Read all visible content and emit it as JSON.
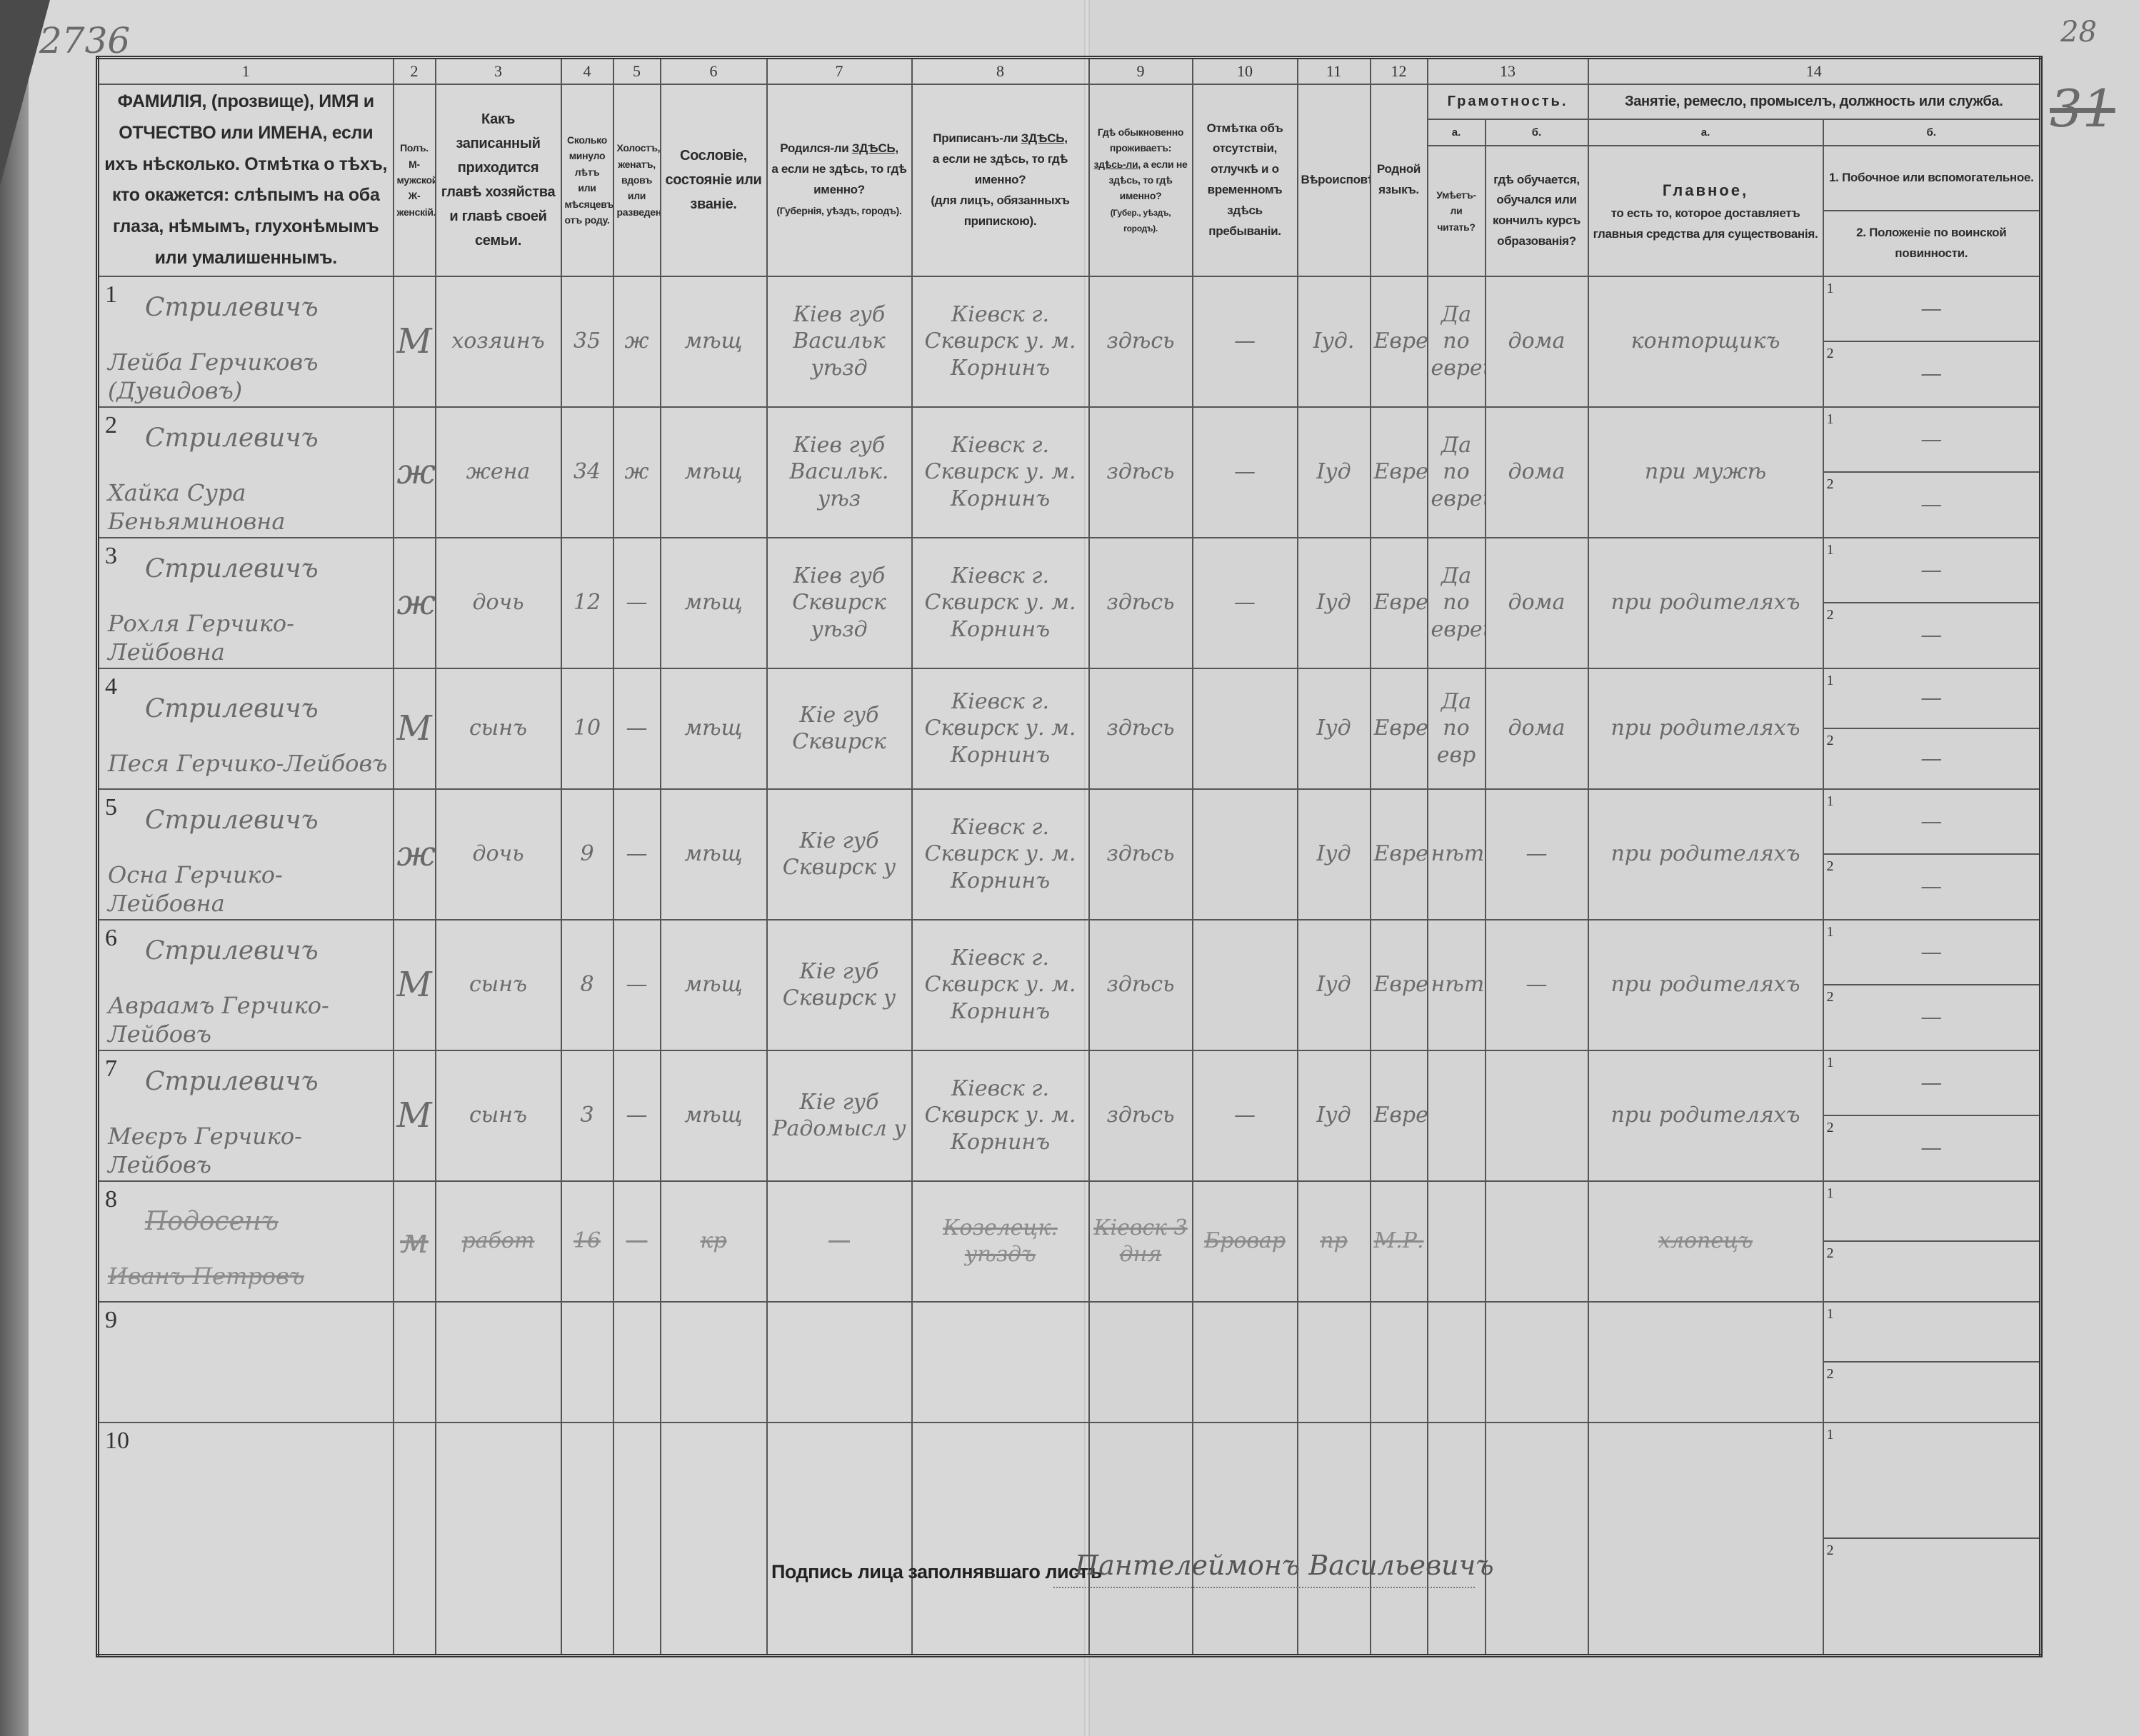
{
  "margin_notes": {
    "archive_number": "2736",
    "page_number": "28",
    "old_page_number": "31"
  },
  "header": {
    "column_numbers": [
      "1",
      "2",
      "3",
      "4",
      "5",
      "6",
      "7",
      "8",
      "9",
      "10",
      "11",
      "12",
      "13",
      "14"
    ],
    "col1": "ФАМИЛІЯ, (прозвище), ИМЯ и ОТЧЕСТВО или ИМЕНА, если ихъ нѣсколько. Отмѣтка о тѣхъ, кто окажется: слѣпымъ на оба глаза, нѣмымъ, глухонѣмымъ или умалишеннымъ.",
    "col2": "Полъ. М-мужской. Ж-женскій.",
    "col3": "Какъ записанный приходится главѣ хозяйства и главѣ своей семьи.",
    "col4": "Сколько минуло лѣтъ или мѣсяцевъ отъ роду.",
    "col5": "Холостъ, женатъ, вдовъ или разведенъ.",
    "col6": "Сословіе, состояніе или званіе.",
    "col7_a": "Родился-ли",
    "col7_here": "ЗДѢСЬ,",
    "col7_b": "а если не здѣсь, то гдѣ именно?",
    "col7_c": "(Губернія, уѣздъ, городъ).",
    "col8_a": "Приписанъ-ли",
    "col8_here": "ЗДѢСЬ,",
    "col8_b": "а если не здѣсь, то гдѣ именно?",
    "col8_c": "(для лицъ, обязанныхъ припискою).",
    "col9_a": "Гдѣ обыкновенно проживаетъ:",
    "col9_here": "здѣсь-ли,",
    "col9_b": "а если не здѣсь, то гдѣ именно?",
    "col9_c": "(Губер., уѣздъ, городъ).",
    "col10": "Отмѣтка объ отсутствіи, отлучкѣ и о временномъ здѣсь пребываніи.",
    "col11": "Вѣроисповѣданіе.",
    "col12": "Родной языкъ.",
    "col13_title": "Грамотность.",
    "col13_a_letter": "а.",
    "col13_b_letter": "б.",
    "col13_a": "Умѣетъ-ли читать?",
    "col13_b": "гдѣ обучается, обучался или кончилъ курсъ образованія?",
    "col14_title": "Занятіе, ремесло, промыселъ, должность или служба.",
    "col14_a_letter": "а.",
    "col14_b_letter": "б.",
    "col14_a_title": "Главное,",
    "col14_a": "то есть то, которое доставляетъ главныя средства для существованія.",
    "col14_b1": "1. Побочное или вспомогательное.",
    "col14_b2": "2. Положеніе по воинской повинности.",
    "sub_labels": [
      "1",
      "2"
    ]
  },
  "rows": [
    {
      "num": "1",
      "surname": "Стрилевичъ",
      "given": "Лейба Герчиковъ (Дувидовъ)",
      "sex": "М",
      "relation": "хозяинъ",
      "age": "35",
      "marital": "ж",
      "estate": "мѣщ",
      "birthplace": "Кіев губ Васильк уѣзд",
      "registered": "Кіевск г. Сквирск у. м. Корнинъ",
      "residence": "здѣсь",
      "absence": "—",
      "religion": "Іуд.",
      "language": "Еврейск",
      "literacy_a": "Да по еврейски",
      "literacy_b": "дома",
      "occupation_main": "конторщикъ",
      "occupation_side": "—",
      "military": "—",
      "struck": false
    },
    {
      "num": "2",
      "surname": "Стрилевичъ",
      "given": "Хайка Сура Беньяминовна",
      "sex": "ж",
      "relation": "жена",
      "age": "34",
      "marital": "ж",
      "estate": "мѣщ",
      "birthplace": "Кіев губ Васильк. уѣз",
      "registered": "Кіевск г. Сквирск у. м. Корнинъ",
      "residence": "здѣсь",
      "absence": "—",
      "religion": "Іуд",
      "language": "Еврейск",
      "literacy_a": "Да по еврейск",
      "literacy_b": "дома",
      "occupation_main": "при мужѣ",
      "occupation_side": "—",
      "military": "—",
      "struck": false
    },
    {
      "num": "3",
      "surname": "Стрилевичъ",
      "given": "Рохля Герчико-Лейбовна",
      "sex": "ж",
      "relation": "дочь",
      "age": "12",
      "marital": "—",
      "estate": "мѣщ",
      "birthplace": "Кіев губ Сквирск уѣзд",
      "registered": "Кіевск г. Сквирск у. м. Корнинъ",
      "residence": "здѣсь",
      "absence": "—",
      "religion": "Іуд",
      "language": "Еврейск",
      "literacy_a": "Да по еврейск",
      "literacy_b": "дома",
      "occupation_main": "при родителяхъ",
      "occupation_side": "—",
      "military": "—",
      "struck": false
    },
    {
      "num": "4",
      "surname": "Стрилевичъ",
      "given": "Песя Герчико-Лейбовъ",
      "sex": "М",
      "relation": "сынъ",
      "age": "10",
      "marital": "—",
      "estate": "мѣщ",
      "birthplace": "Кіе губ Сквирск",
      "registered": "Кіевск г. Сквирск у. м. Корнинъ",
      "residence": "здѣсь",
      "absence": "",
      "religion": "Іуд",
      "language": "Еврейск",
      "literacy_a": "Да по евр",
      "literacy_b": "дома",
      "occupation_main": "при родителяхъ",
      "occupation_side": "—",
      "military": "—",
      "struck": false
    },
    {
      "num": "5",
      "surname": "Стрилевичъ",
      "given": "Осна Герчико-Лейбовна",
      "sex": "ж",
      "relation": "дочь",
      "age": "9",
      "marital": "—",
      "estate": "мѣщ",
      "birthplace": "Кіе губ Сквирск у",
      "registered": "Кіевск г. Сквирск у. м. Корнинъ",
      "residence": "здѣсь",
      "absence": "",
      "religion": "Іуд",
      "language": "Еврейск",
      "literacy_a": "нѣтъ",
      "literacy_b": "—",
      "occupation_main": "при родителяхъ",
      "occupation_side": "—",
      "military": "—",
      "struck": false
    },
    {
      "num": "6",
      "surname": "Стрилевичъ",
      "given": "Авраамъ Герчико-Лейбовъ",
      "sex": "М",
      "relation": "сынъ",
      "age": "8",
      "marital": "—",
      "estate": "мѣщ",
      "birthplace": "Кіе губ Сквирск у",
      "registered": "Кіевск г. Сквирск у. м. Корнинъ",
      "residence": "здѣсь",
      "absence": "",
      "religion": "Іуд",
      "language": "Еврейск",
      "literacy_a": "нѣтъ",
      "literacy_b": "—",
      "occupation_main": "при родителяхъ",
      "occupation_side": "—",
      "military": "—",
      "struck": false
    },
    {
      "num": "7",
      "surname": "Стрилевичъ",
      "given": "Меєръ Герчико-Лейбовъ",
      "sex": "М",
      "relation": "сынъ",
      "age": "3",
      "marital": "—",
      "estate": "мѣщ",
      "birthplace": "Кіе губ Радомысл у",
      "registered": "Кіевск г. Сквирск у. м. Корнинъ",
      "residence": "здѣсь",
      "absence": "—",
      "religion": "Іуд",
      "language": "Еврейск",
      "literacy_a": "",
      "literacy_b": "",
      "occupation_main": "при родителяхъ",
      "occupation_side": "—",
      "military": "—",
      "struck": false
    },
    {
      "num": "8",
      "surname": "Подосенъ",
      "given": "Иванъ Петровъ",
      "sex": "м",
      "relation": "работ",
      "age": "16",
      "marital": "—",
      "estate": "кр",
      "birthplace": "—",
      "registered": "Козелецк. уѣздъ",
      "residence": "Кіевск 3 дня",
      "absence": "Бровар",
      "religion": "пр",
      "language": "М.Р.",
      "literacy_a": "",
      "literacy_b": "",
      "occupation_main": "хлопецъ",
      "occupation_side": "",
      "military": "",
      "struck": true
    },
    {
      "num": "9",
      "surname": "",
      "given": "",
      "sex": "",
      "relation": "",
      "age": "",
      "marital": "",
      "estate": "",
      "birthplace": "",
      "registered": "",
      "residence": "",
      "absence": "",
      "religion": "",
      "language": "",
      "literacy_a": "",
      "literacy_b": "",
      "occupation_main": "",
      "occupation_side": "",
      "military": "",
      "struck": false
    },
    {
      "num": "10",
      "surname": "",
      "given": "",
      "sex": "",
      "relation": "",
      "age": "",
      "marital": "",
      "estate": "",
      "birthplace": "",
      "registered": "",
      "residence": "",
      "absence": "",
      "religion": "",
      "language": "",
      "literacy_a": "",
      "literacy_b": "",
      "occupation_main": "",
      "occupation_side": "",
      "military": "",
      "struck": false
    }
  ],
  "footer": {
    "signature_label": "Подпись лица заполнявшаго листъ",
    "signature": "Пантелеймонъ Васильевичъ"
  }
}
